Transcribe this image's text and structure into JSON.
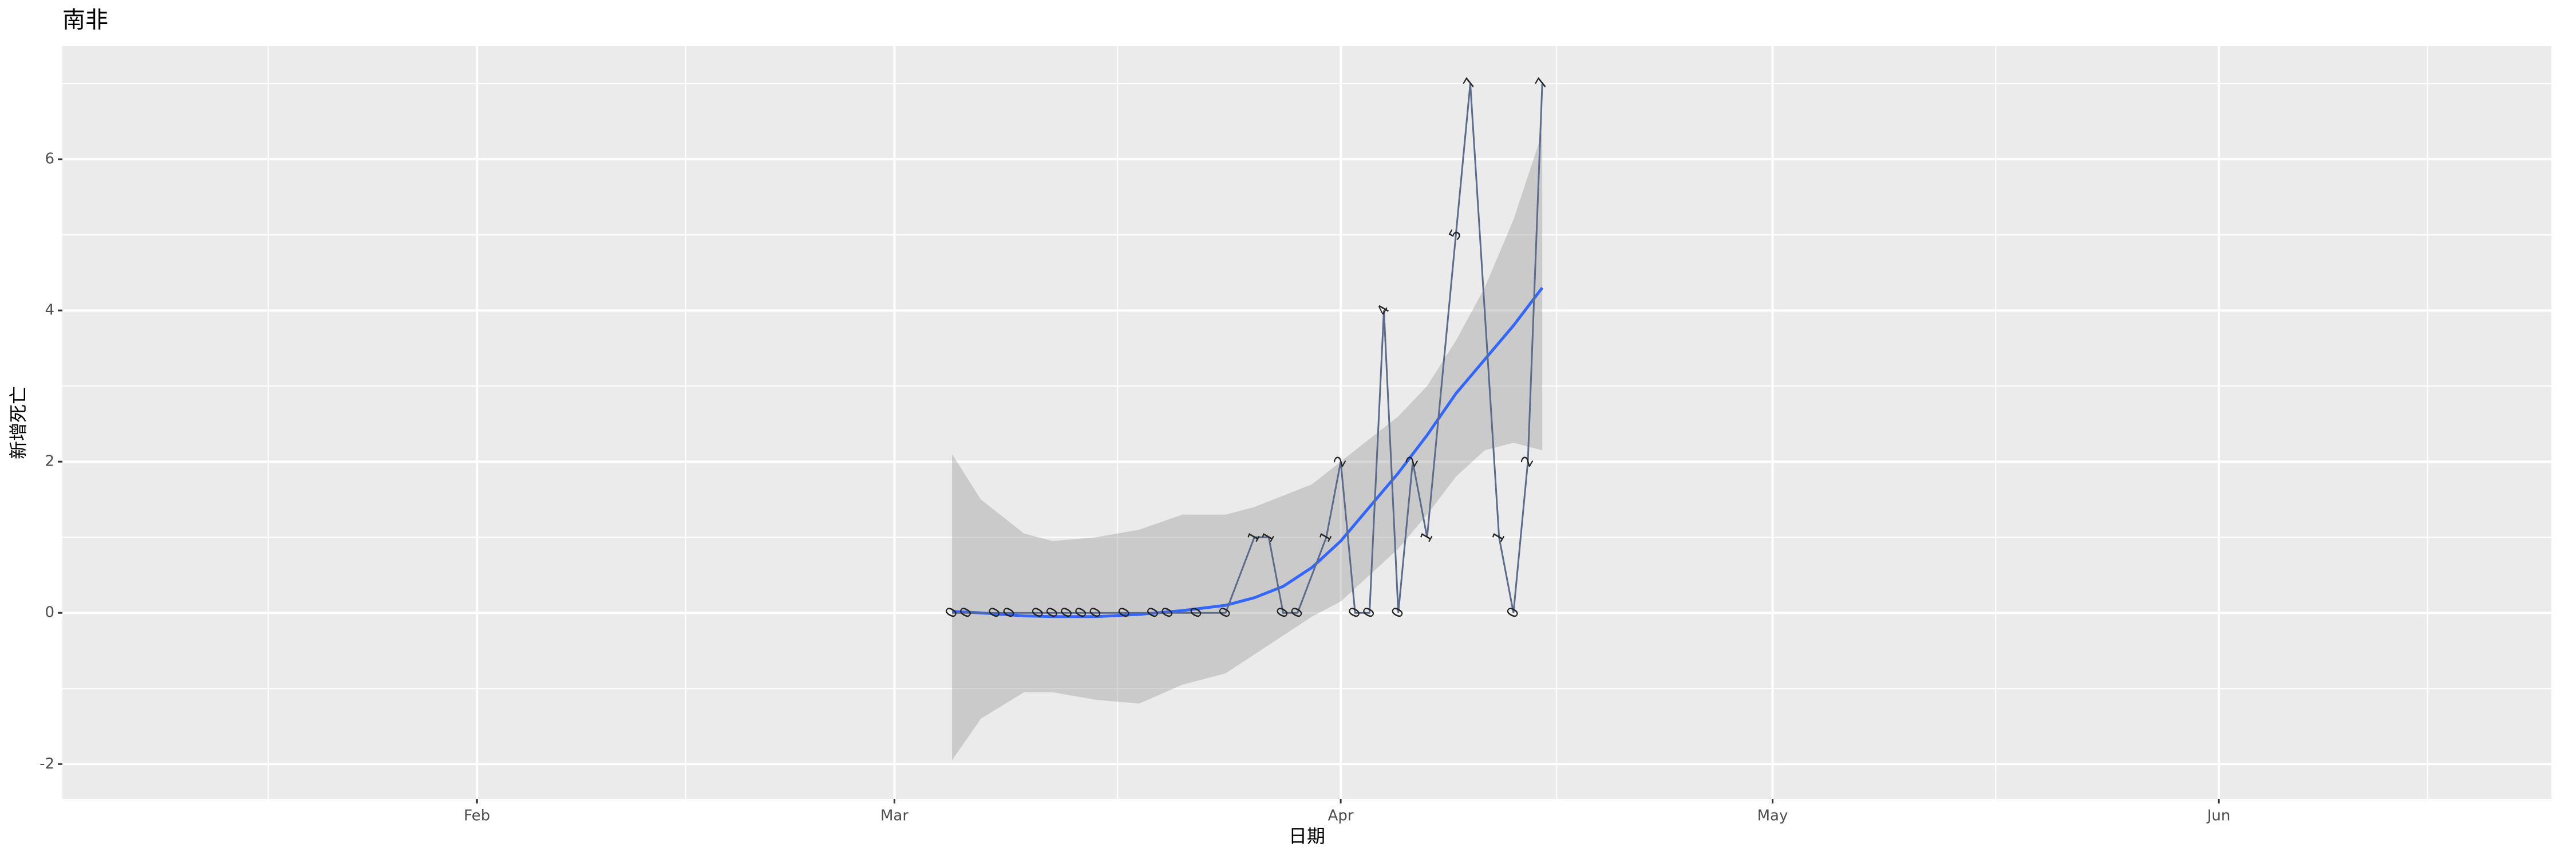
{
  "chart_data": {
    "type": "line",
    "title": "南非",
    "x_label": "日期",
    "y_label": "新增死亡",
    "x": [
      65,
      66,
      68,
      69,
      71,
      72,
      73,
      74,
      75,
      77,
      79,
      80,
      82,
      84,
      86,
      87,
      88,
      89,
      91,
      92,
      93,
      94,
      95,
      96,
      97,
      98,
      100,
      101,
      103,
      104,
      105,
      106
    ],
    "values": [
      0,
      0,
      0,
      0,
      0,
      0,
      0,
      0,
      0,
      0,
      0,
      0,
      0,
      0,
      1,
      1,
      0,
      0,
      1,
      2,
      0,
      0,
      4,
      0,
      2,
      1,
      5,
      7,
      1,
      0,
      2,
      7
    ],
    "color": "#5b6b8c",
    "smooth": {
      "color": "#3366ff",
      "band_color": "#999999",
      "x": [
        65,
        67,
        70,
        72,
        75,
        78,
        81,
        84,
        86,
        88,
        90,
        92,
        94,
        96,
        98,
        100,
        102,
        104,
        106
      ],
      "fit": [
        0.02,
        0,
        -0.04,
        -0.05,
        -0.05,
        -0.02,
        0.03,
        0.1,
        0.2,
        0.35,
        0.6,
        0.95,
        1.4,
        1.85,
        2.35,
        2.9,
        3.35,
        3.8,
        4.3
      ],
      "lower": [
        -1.95,
        -1.4,
        -1.05,
        -1.05,
        -1.15,
        -1.2,
        -0.95,
        -0.8,
        -0.55,
        -0.3,
        -0.05,
        0.15,
        0.5,
        0.85,
        1.3,
        1.8,
        2.15,
        2.25,
        2.15
      ],
      "upper": [
        2.1,
        1.5,
        1.05,
        0.95,
        1.0,
        1.1,
        1.3,
        1.3,
        1.4,
        1.55,
        1.7,
        2.0,
        2.3,
        2.6,
        3.0,
        3.6,
        4.3,
        5.2,
        6.35
      ]
    },
    "xlim": [
      3.2,
      176.1
    ],
    "xticks": [
      {
        "value": 32,
        "label": "Feb"
      },
      {
        "value": 61,
        "label": "Mar"
      },
      {
        "value": 92,
        "label": "Apr"
      },
      {
        "value": 122,
        "label": "May"
      },
      {
        "value": 153,
        "label": "Jun"
      }
    ],
    "ylim": [
      -2.46,
      7.5
    ],
    "yticks": [
      -2,
      0,
      2,
      4,
      6
    ],
    "grid": true
  }
}
